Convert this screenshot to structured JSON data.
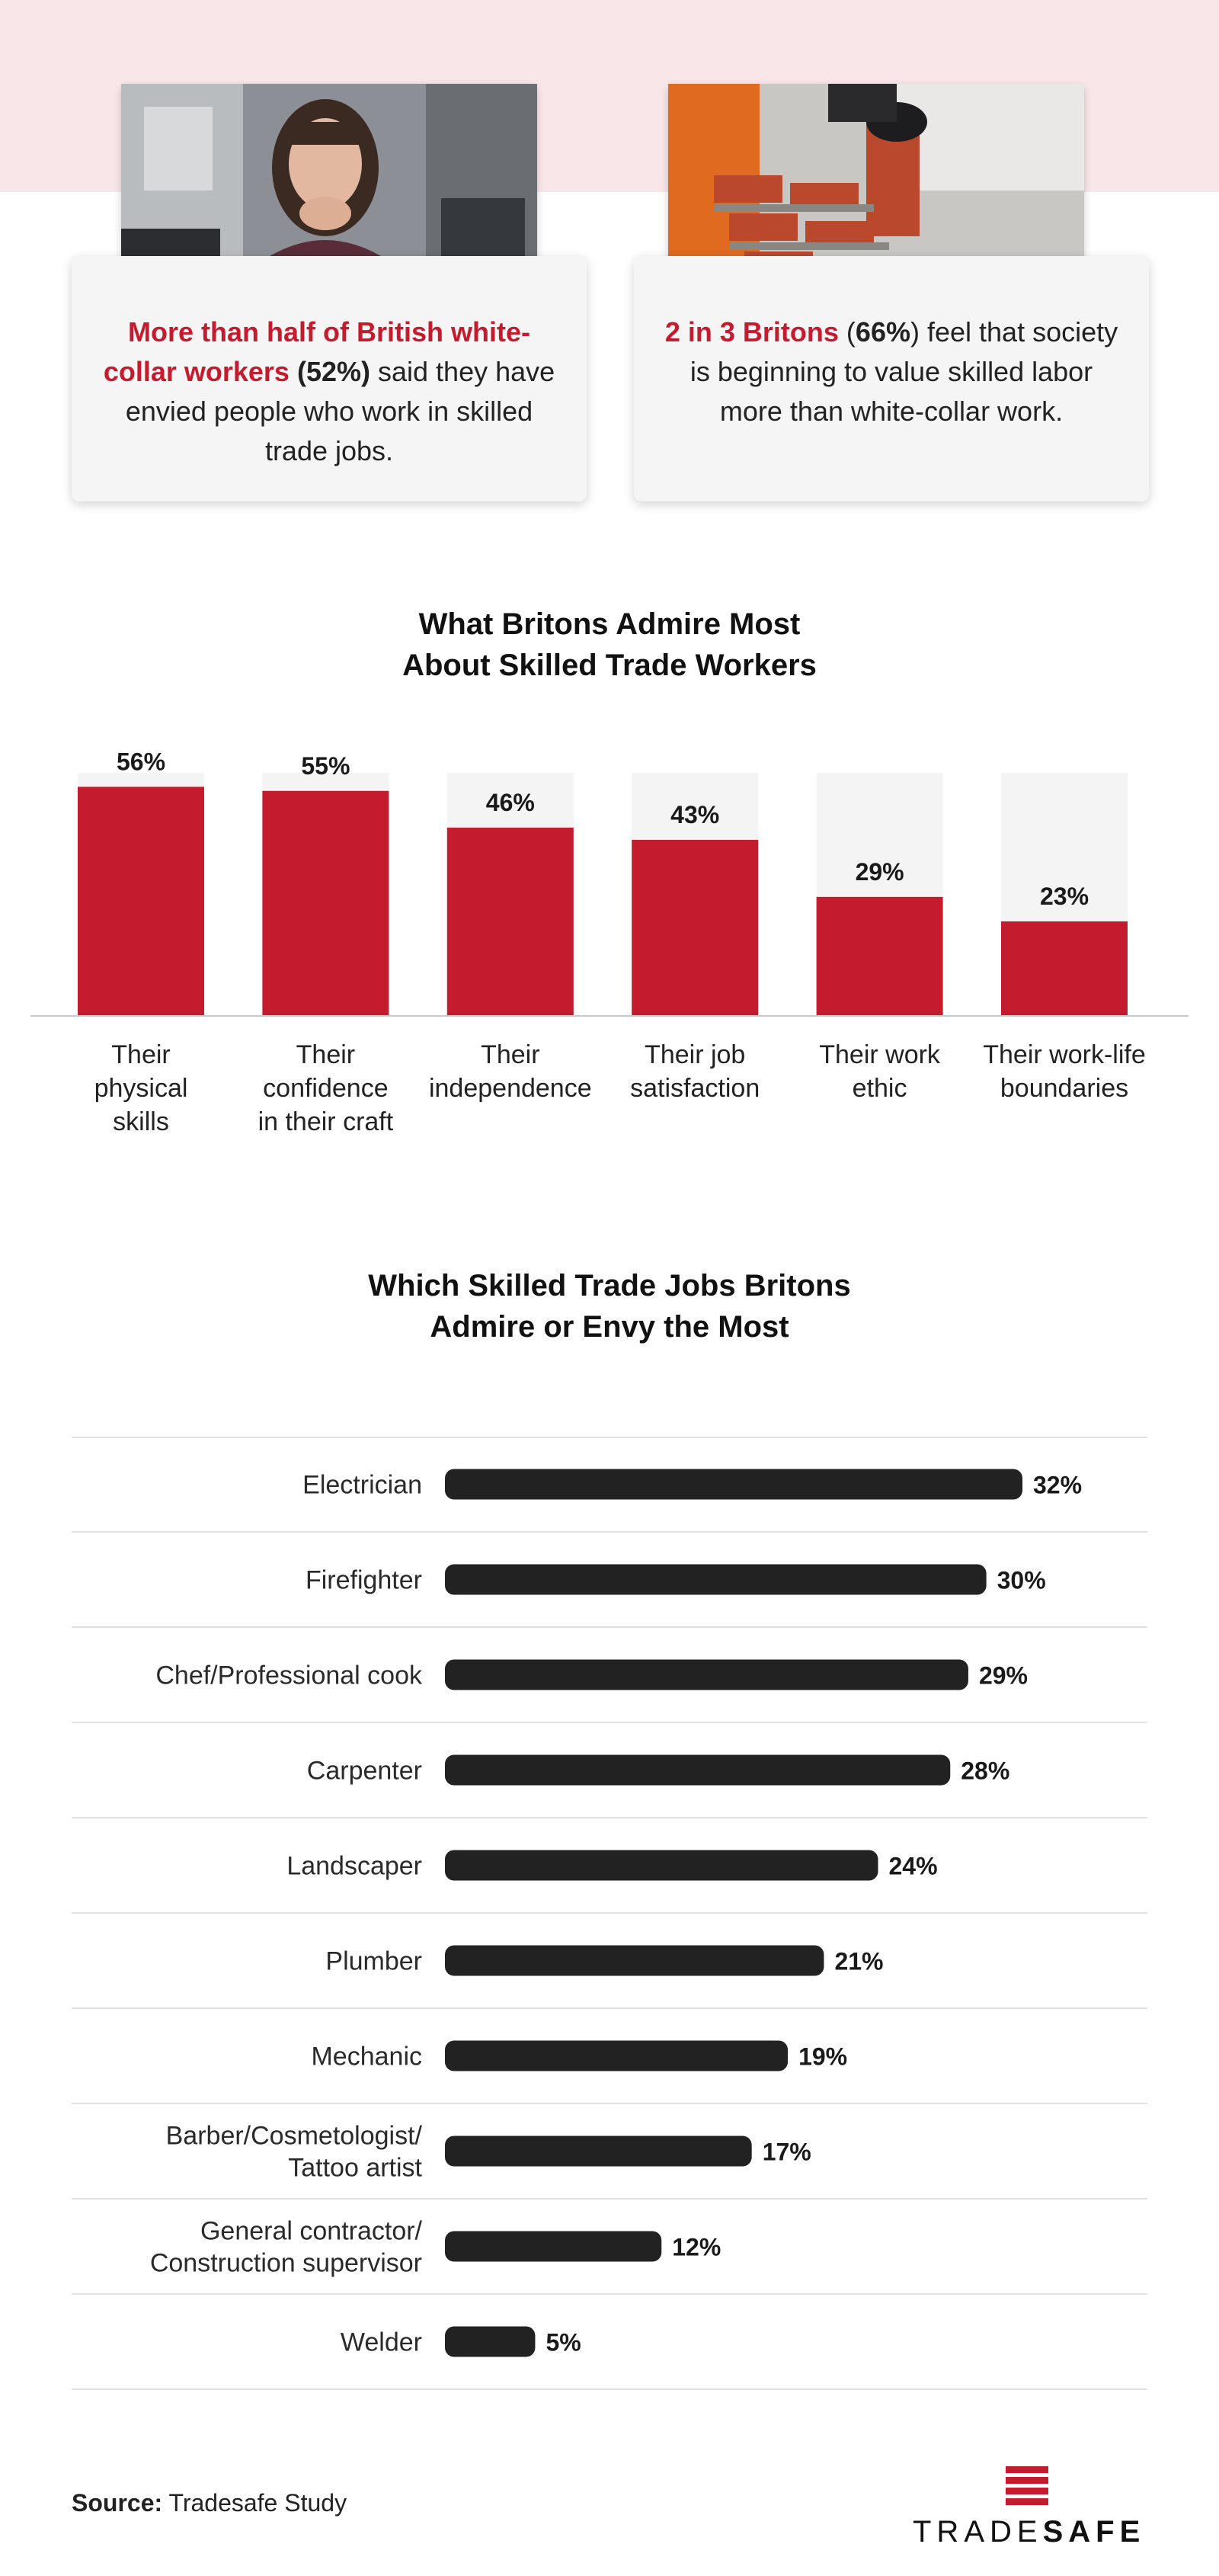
{
  "cards": [
    {
      "highlight": "More than half of British white-collar workers",
      "stat": "(52%)",
      "rest": " said they have envied people who work in skilled trade jobs.",
      "photo_icon": "woman-thinking-photo"
    },
    {
      "highlight": "2 in 3 Britons",
      "stat_prefix": " (",
      "stat": "66%",
      "stat_suffix": ")",
      "rest": " feel that society is beginning to value skilled labor more than white-collar work.",
      "photo_icon": "bricklaying-photo"
    }
  ],
  "colors": {
    "accent_red": "#c51b2f",
    "dark_bar": "#222222",
    "bar_track": "#f4f4f4",
    "pink_band": "#f9e6e8"
  },
  "chart_data": [
    {
      "type": "bar",
      "title": "What Britons Admire Most About Skilled Trade Workers",
      "title_lines": [
        "What Britons Admire Most",
        "About Skilled Trade Workers"
      ],
      "categories": [
        [
          "Their",
          "physical",
          "skills"
        ],
        [
          "Their",
          "confidence",
          "in their craft"
        ],
        [
          "Their",
          "independence"
        ],
        [
          "Their job",
          "satisfaction"
        ],
        [
          "Their work",
          "ethic"
        ],
        [
          "Their work-life",
          "boundaries"
        ]
      ],
      "values": [
        56,
        55,
        46,
        43,
        29,
        23
      ],
      "value_labels": [
        "56%",
        "55%",
        "46%",
        "43%",
        "29%",
        "23%"
      ],
      "ylim": [
        0,
        100
      ],
      "grid": false,
      "xlabel": "",
      "ylabel": ""
    },
    {
      "type": "bar",
      "orientation": "horizontal",
      "title": "Which Skilled Trade Jobs Britons Admire or Envy the Most",
      "title_lines": [
        "Which Skilled Trade Jobs Britons",
        "Admire or Envy the Most"
      ],
      "categories": [
        [
          "Electrician"
        ],
        [
          "Firefighter"
        ],
        [
          "Chef/Professional cook"
        ],
        [
          "Carpenter"
        ],
        [
          "Landscaper"
        ],
        [
          "Plumber"
        ],
        [
          "Mechanic"
        ],
        [
          "Barber/Cosmetologist/",
          "Tattoo artist"
        ],
        [
          "General contractor/",
          "Construction supervisor"
        ],
        [
          "Welder"
        ]
      ],
      "values": [
        32,
        30,
        29,
        28,
        24,
        21,
        19,
        17,
        12,
        5
      ],
      "value_labels": [
        "32%",
        "30%",
        "29%",
        "28%",
        "24%",
        "21%",
        "19%",
        "17%",
        "12%",
        "5%"
      ],
      "xlim": [
        0,
        32
      ],
      "grid": false,
      "xlabel": "",
      "ylabel": ""
    }
  ],
  "footer": {
    "source_label": "Source:",
    "source_text": " Tradesafe Study",
    "logo_text_thin": "TRADE",
    "logo_text_bold": "SAFE",
    "logo_icon": "tradesafe-logo-icon"
  }
}
